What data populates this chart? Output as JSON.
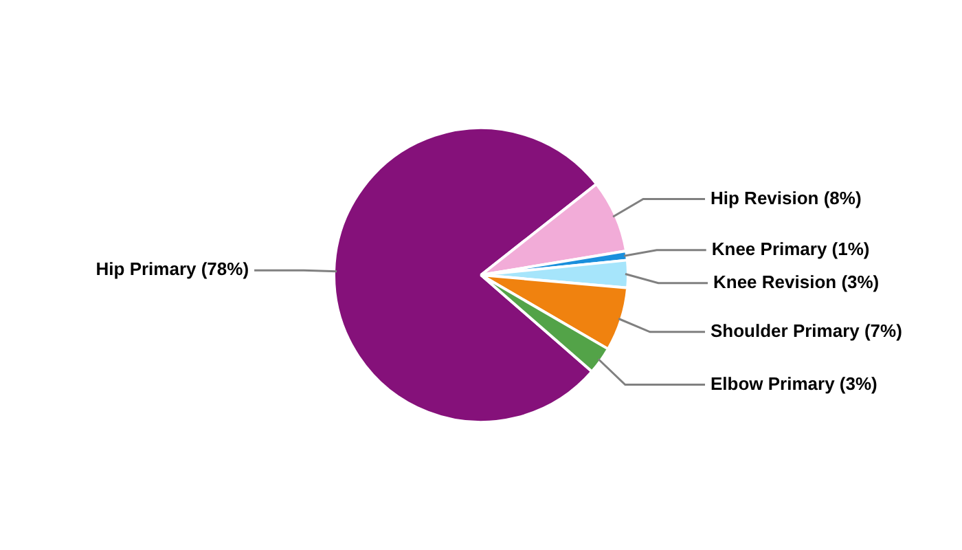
{
  "chart_data": {
    "type": "pie",
    "categories": [
      "Hip Primary",
      "Hip Revision",
      "Knee Primary",
      "Knee Revision",
      "Shoulder Primary",
      "Elbow Primary"
    ],
    "values": [
      78,
      8,
      1,
      3,
      7,
      3
    ],
    "value_labels": [
      "(78%)",
      "(8%)",
      "(1%)",
      "(3%)",
      "(7%)",
      "(3%)"
    ],
    "colors": [
      "#85117a",
      "#f2acd8",
      "#1a8fdc",
      "#a6e5fb",
      "#f0820f",
      "#53a348"
    ],
    "legend": false
  }
}
